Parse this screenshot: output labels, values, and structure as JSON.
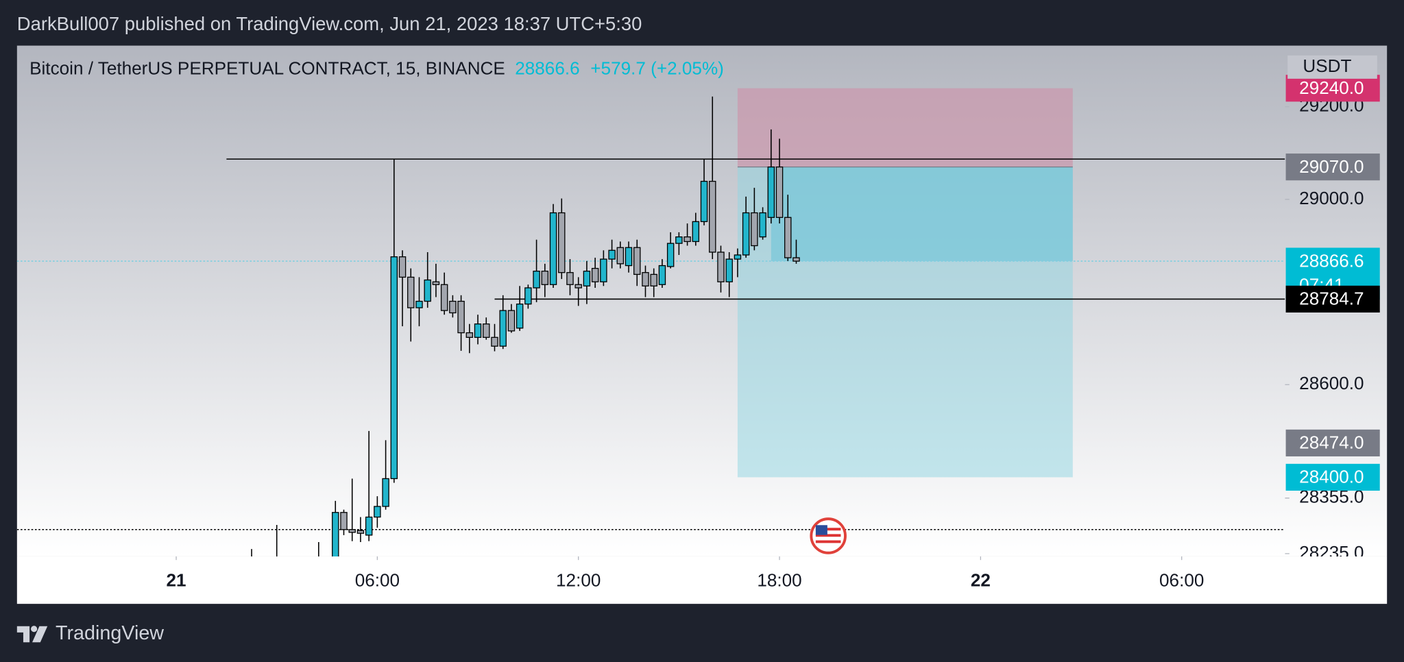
{
  "chart_data": {
    "type": "candlestick",
    "header": "DarkBull007 published on TradingView.com, Jun 21, 2023 18:37 UTC+5:30",
    "title": "Bitcoin / TetherUS PERPETUAL CONTRACT, 15, BINANCE",
    "last_price": 28866.6,
    "change": "+579.7 (+2.05%)",
    "currency": "USDT",
    "brand": "TradingView",
    "up_color": "#22b5cc",
    "down_color": "#a3a6ae",
    "xlim": [
      -4.75,
      33.08
    ],
    "xticks": [
      {
        "value": 0,
        "label": "21"
      },
      {
        "value": 6,
        "label": "06:00"
      },
      {
        "value": 12,
        "label": "12:00"
      },
      {
        "value": 18,
        "label": "18:00"
      },
      {
        "value": 24,
        "label": "22"
      },
      {
        "value": 30,
        "label": "06:00"
      }
    ],
    "ylim": [
      28229,
      29332
    ],
    "yticks": [
      {
        "value": 29200,
        "label": "29200.0"
      },
      {
        "value": 29000,
        "label": "29000.0"
      },
      {
        "value": 28600,
        "label": "28600.0"
      },
      {
        "value": 28355,
        "label": "28355.0"
      },
      {
        "value": 28235,
        "label": "28235.0"
      }
    ],
    "x": [
      2.25,
      3,
      4.25,
      4.75,
      5,
      5.25,
      5.5,
      5.75,
      6,
      6.25,
      6.5,
      6.75,
      7,
      7.25,
      7.5,
      7.75,
      8,
      8.25,
      8.5,
      8.75,
      9,
      9.25,
      9.5,
      9.75,
      10,
      10.25,
      10.5,
      10.75,
      11,
      11.25,
      11.5,
      11.75,
      12,
      12.25,
      12.5,
      12.75,
      13,
      13.25,
      13.5,
      13.75,
      14,
      14.25,
      14.5,
      14.75,
      15,
      15.25,
      15.5,
      15.75,
      16,
      16.25,
      16.5,
      16.75,
      17,
      17.25,
      17.5,
      17.75,
      18,
      18.25,
      18.5
    ],
    "open": [
      28220,
      28215,
      28210,
      28220,
      28324,
      28287,
      28285,
      28275,
      28314,
      28337,
      28397,
      28876,
      28832,
      28766,
      28780,
      28822,
      28816,
      28780,
      28780,
      28712,
      28702,
      28731,
      28702,
      28683,
      28760,
      28722,
      28774,
      28809,
      28845,
      28816,
      28971,
      28842,
      28816,
      28813,
      28851,
      28822,
      28871,
      28896,
      28857,
      28896,
      28842,
      28838,
      28816,
      28855,
      28905,
      28919,
      28909,
      28952,
      29039,
      28886,
      28822,
      28871,
      28880,
      28971,
      28919,
      28961,
      29070,
      28961,
      28874
    ],
    "high": [
      28245,
      28297,
      28260,
      28349,
      28330,
      28397,
      28314,
      28500,
      28359,
      28480,
      29087,
      28890,
      28851,
      28832,
      28886,
      28861,
      28842,
      28793,
      28793,
      28731,
      28751,
      28745,
      28731,
      28793,
      28774,
      28813,
      28816,
      28913,
      28861,
      28990,
      29002,
      28871,
      28832,
      28867,
      28874,
      28890,
      28913,
      28909,
      28909,
      28913,
      28857,
      28851,
      28871,
      28929,
      28929,
      28948,
      28971,
      29087,
      29222,
      28900,
      28886,
      28894,
      29006,
      29025,
      28983,
      29151,
      29131,
      29010,
      28913
    ],
    "low": [
      28200,
      28190,
      28180,
      28200,
      28275,
      28262,
      28260,
      28262,
      28291,
      28330,
      28388,
      28726,
      28693,
      28726,
      28766,
      28789,
      28751,
      28745,
      28673,
      28668,
      28687,
      28697,
      28672,
      28677,
      28712,
      28716,
      28764,
      28778,
      28789,
      28809,
      28828,
      28793,
      28770,
      28774,
      28809,
      28813,
      28851,
      28851,
      28842,
      28813,
      28789,
      28789,
      28809,
      28851,
      28880,
      28900,
      28900,
      28944,
      28871,
      28799,
      28789,
      28832,
      28874,
      28890,
      28913,
      28948,
      28948,
      28867,
      28861
    ],
    "close": [
      28215,
      28225,
      28220,
      28324,
      28287,
      28281,
      28279,
      28314,
      28337,
      28397,
      28876,
      28832,
      28766,
      28780,
      28826,
      28816,
      28760,
      28755,
      28712,
      28702,
      28731,
      28702,
      28683,
      28760,
      28716,
      28774,
      28809,
      28845,
      28816,
      28971,
      28842,
      28816,
      28809,
      28845,
      28822,
      28871,
      28890,
      28861,
      28896,
      28838,
      28813,
      28813,
      28857,
      28905,
      28919,
      28909,
      28952,
      29039,
      28886,
      28822,
      28871,
      28880,
      28971,
      28900,
      28971,
      29070,
      28961,
      28874,
      28866.6
    ],
    "position": {
      "start": 16.75,
      "end": 26.75,
      "stop": 29240,
      "entry": 29070,
      "target": 28400,
      "fill_start": 17.75,
      "loss_color": "#c99aad",
      "profit_color": "#8fd5e1",
      "open_color": "#6cc5d8"
    },
    "levels": [
      {
        "value": 29087,
        "start": 1.5,
        "color": "#000000",
        "style": "solid"
      },
      {
        "value": 28784.7,
        "start": 9.5,
        "color": "#000000",
        "style": "solid"
      },
      {
        "value": 28866.6,
        "color": "#7fcfe0",
        "style": "dotted"
      },
      {
        "value": 28287,
        "color": "#000000",
        "style": "dotted"
      }
    ],
    "price_labels": [
      {
        "value": 29240,
        "label": "29240.0",
        "color": "#d4326e"
      },
      {
        "value": 29070,
        "label": "29070.0",
        "color": "#787b86"
      },
      {
        "value": 28866.6,
        "label": "28866.6",
        "color": "#00bcd4",
        "countdown": "07:41"
      },
      {
        "value": 28784.7,
        "label": "28784.7",
        "color": "#000000"
      },
      {
        "value": 28474,
        "label": "28474.0",
        "color": "#787b86"
      },
      {
        "value": 28400,
        "label": "28400.0",
        "color": "#00bcd4"
      }
    ]
  }
}
